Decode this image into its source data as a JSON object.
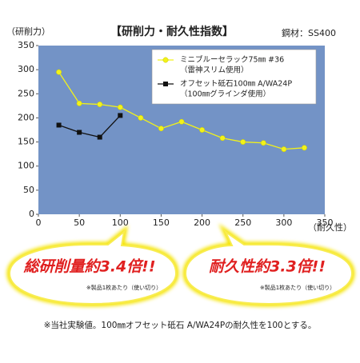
{
  "chart_data": {
    "type": "line",
    "title": "【研削力・耐久性指数】",
    "material": "鋼材：SS400",
    "ylabel": "（研削力）",
    "xlabel": "（耐久性）",
    "xlim": [
      0,
      350
    ],
    "xticks": [
      0,
      50,
      100,
      150,
      200,
      250,
      300,
      350
    ],
    "ylim": [
      0,
      350
    ],
    "yticks": [
      0,
      50,
      100,
      150,
      200,
      250,
      300,
      350
    ],
    "grid": false,
    "legend": "upper right",
    "series": [
      {
        "name": "ミニブルーセラック75㎜ #36",
        "note": "（雷神スリム使用）",
        "color": "#f2f21a",
        "marker": "circle",
        "x": [
          25,
          50,
          75,
          100,
          125,
          150,
          175,
          200,
          225,
          250,
          275,
          300,
          325
        ],
        "values": [
          295,
          230,
          228,
          222,
          200,
          178,
          192,
          175,
          158,
          150,
          148,
          135,
          138
        ]
      },
      {
        "name": "オフセット砥石100㎜ A/WA24P",
        "note": "（100㎜グラインダ使用）",
        "color": "#111111",
        "marker": "square",
        "x": [
          25,
          50,
          75,
          100
        ],
        "values": [
          185,
          170,
          160,
          205
        ]
      }
    ]
  },
  "callouts": [
    {
      "text": "総研削量約3.4倍!!",
      "note": "※製品1枚あたり（使い切り）"
    },
    {
      "text": "耐久性約3.3倍!!",
      "note": "※製品1枚あたり（使い切り）"
    }
  ],
  "footnote": "※当社実験値。100㎜オフセット砥石 A/WA24Pの耐久性を100とする。"
}
